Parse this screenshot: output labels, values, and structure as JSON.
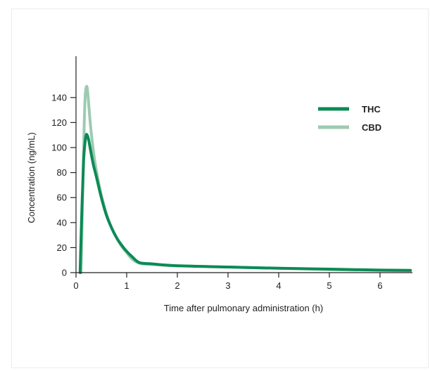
{
  "chart_data": {
    "type": "line",
    "title": "",
    "xlabel": "Time after pulmonary administration (h)",
    "ylabel": "Concentration (ng/mL)",
    "xlim": [
      0,
      6.6
    ],
    "ylim": [
      0,
      150
    ],
    "xticks": [
      0,
      1,
      2,
      3,
      4,
      5,
      6
    ],
    "yticks": [
      0,
      20,
      40,
      60,
      80,
      100,
      120,
      140
    ],
    "grid": false,
    "legend": "top-right",
    "series": [
      {
        "name": "THC",
        "color": "#0c8a56",
        "x": [
          0.08,
          0.12,
          0.15,
          0.18,
          0.2,
          0.22,
          0.25,
          0.3,
          0.35,
          0.4,
          0.5,
          0.6,
          0.7,
          0.8,
          0.9,
          1.0,
          1.1,
          1.25,
          1.5,
          2.0,
          3.0,
          4.0,
          5.0,
          6.0,
          6.6
        ],
        "y": [
          0,
          55,
          90,
          105,
          110,
          110,
          106,
          95,
          85,
          77,
          60,
          46,
          36,
          28,
          22,
          17,
          13,
          8,
          7,
          5.5,
          4.5,
          3.5,
          2.8,
          2.0,
          1.8
        ]
      },
      {
        "name": "CBD",
        "color": "#9ccbb1",
        "x": [
          0.1,
          0.13,
          0.16,
          0.18,
          0.2,
          0.22,
          0.24,
          0.27,
          0.3,
          0.35,
          0.4,
          0.5,
          0.6,
          0.7,
          0.8,
          0.9,
          1.0,
          1.1,
          1.25,
          1.5,
          2.0,
          3.0,
          4.0,
          5.0,
          6.0,
          6.6
        ],
        "y": [
          0,
          60,
          115,
          140,
          148,
          148,
          140,
          125,
          112,
          95,
          82,
          62,
          47,
          36,
          28,
          21,
          16,
          11,
          7.5,
          6.5,
          5.5,
          4.5,
          3.5,
          2.5,
          1.8,
          1.5
        ]
      }
    ]
  }
}
